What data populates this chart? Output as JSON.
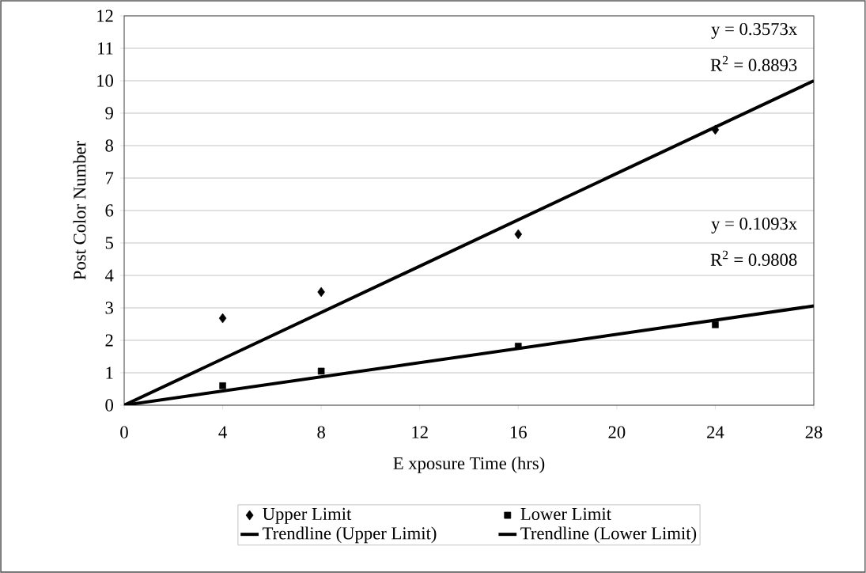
{
  "chart_data": {
    "type": "scatter",
    "xlabel": "E xposure Time (hrs)",
    "ylabel": "Post Color Number",
    "xlim": [
      0,
      28
    ],
    "xticks": [
      0,
      4,
      8,
      12,
      16,
      20,
      24,
      28
    ],
    "ylim": [
      0,
      12
    ],
    "yticks": [
      0,
      1,
      2,
      3,
      4,
      5,
      6,
      7,
      8,
      9,
      10,
      11,
      12
    ],
    "grid": "y",
    "legend": "bottom",
    "series": [
      {
        "name": "Upper Limit",
        "marker": "diamond",
        "color": "#000000",
        "x": [
          4,
          8,
          16,
          24
        ],
        "values": [
          2.68,
          3.49,
          5.27,
          8.49
        ]
      },
      {
        "name": "Lower Limit",
        "marker": "square",
        "color": "#000000",
        "x": [
          4,
          8,
          16,
          24
        ],
        "values": [
          0.6,
          1.05,
          1.82,
          2.48
        ]
      },
      {
        "name": "Trendline (Upper Limit)",
        "type": "line",
        "marker": "none",
        "line_style": "solid",
        "color": "#000000",
        "x": [
          0,
          28
        ],
        "values": [
          0,
          10.0
        ]
      },
      {
        "name": "Trendline (Lower Limit)",
        "type": "line",
        "marker": "none",
        "line_style": "solid",
        "color": "#000000",
        "x": [
          0,
          28
        ],
        "values": [
          0,
          3.06
        ]
      }
    ],
    "annotations": [
      "y = 0.3573x",
      "R$^{2}$ = 0.8893",
      "y = 0.1093x",
      "R$^{2}$ = 0.9808"
    ]
  }
}
